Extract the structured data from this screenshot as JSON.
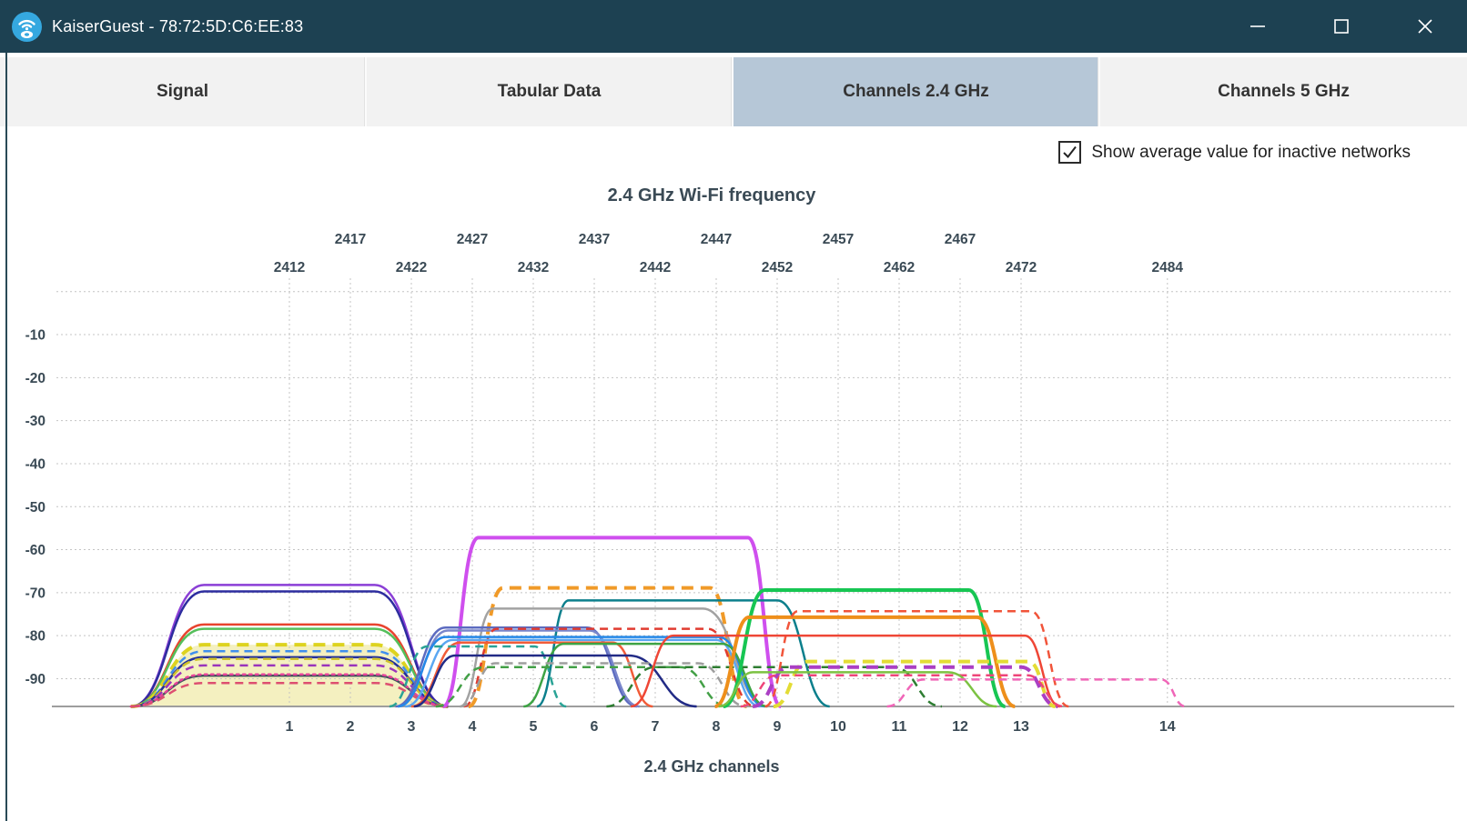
{
  "window": {
    "title": "KaiserGuest - 78:72:5D:C6:EE:83"
  },
  "tabs": [
    {
      "label": "Signal",
      "active": false
    },
    {
      "label": "Tabular Data",
      "active": false
    },
    {
      "label": "Channels 2.4 GHz",
      "active": true
    },
    {
      "label": "Channels 5 GHz",
      "active": false
    }
  ],
  "options": {
    "show_average_label": "Show average value for inactive networks",
    "checked": true
  },
  "chart_data": {
    "type": "area",
    "title": "2.4 GHz Wi-Fi frequency",
    "xlabel": "2.4 GHz channels",
    "x_unit": "MHz",
    "y_unit": "dBm",
    "ylim": [
      0,
      -96
    ],
    "grid": true,
    "freq_labels_upper_row": [
      2417,
      2427,
      2437,
      2447,
      2457,
      2467
    ],
    "freq_labels_lower_row": [
      2412,
      2422,
      2432,
      2442,
      2452,
      2462,
      2472,
      2484
    ],
    "y_ticks": [
      -10,
      -20,
      -30,
      -40,
      -50,
      -60,
      -70,
      -80,
      -90
    ],
    "y_gridlines": [
      0,
      -10,
      -20,
      -30,
      -40,
      -50,
      -60,
      -70,
      -80,
      -90
    ],
    "channels": [
      {
        "num": 1,
        "mhz": 2412
      },
      {
        "num": 2,
        "mhz": 2417
      },
      {
        "num": 3,
        "mhz": 2422
      },
      {
        "num": 4,
        "mhz": 2427
      },
      {
        "num": 5,
        "mhz": 2432
      },
      {
        "num": 6,
        "mhz": 2437
      },
      {
        "num": 7,
        "mhz": 2442
      },
      {
        "num": 8,
        "mhz": 2447
      },
      {
        "num": 9,
        "mhz": 2452
      },
      {
        "num": 10,
        "mhz": 2457
      },
      {
        "num": 11,
        "mhz": 2462
      },
      {
        "num": 12,
        "mhz": 2467
      },
      {
        "num": 13,
        "mhz": 2472
      },
      {
        "num": 14,
        "mhz": 2484
      }
    ],
    "networks": [
      {
        "color": "#8b3fd6",
        "style": "solid",
        "peak_dbm": -68.2,
        "f_base_left": 2399,
        "f_top_left": 2405,
        "f_top_right": 2419,
        "f_base_right": 2425
      },
      {
        "color": "#2d2d9f",
        "style": "solid",
        "peak_dbm": -69.7,
        "f_base_left": 2399,
        "f_top_left": 2405,
        "f_top_right": 2419,
        "f_base_right": 2425
      },
      {
        "color": "#e8432e",
        "style": "solid",
        "peak_dbm": -77.4,
        "f_base_left": 2399,
        "f_top_left": 2405,
        "f_top_right": 2419,
        "f_base_right": 2425
      },
      {
        "color": "#55bf5b",
        "style": "solid",
        "peak_dbm": -78.4,
        "f_base_left": 2399,
        "f_top_left": 2405,
        "f_top_right": 2419,
        "f_base_right": 2425
      },
      {
        "color": "#ddd31f",
        "style": "dashed",
        "peak_dbm": -82.1,
        "f_base_left": 2399,
        "f_top_left": 2405,
        "f_top_right": 2419,
        "f_base_right": 2425,
        "selected": true,
        "thick": true,
        "fill_color": "#f4f0c0"
      },
      {
        "color": "#3f8fee",
        "style": "dashed",
        "peak_dbm": -83.6,
        "f_base_left": 2399,
        "f_top_left": 2405,
        "f_top_right": 2419,
        "f_base_right": 2425
      },
      {
        "color": "#24309c",
        "style": "solid",
        "peak_dbm": -85.0,
        "f_base_left": 2399,
        "f_top_left": 2405,
        "f_top_right": 2419,
        "f_base_right": 2425
      },
      {
        "color": "#cfc22c",
        "style": "dashed",
        "peak_dbm": -85.4,
        "f_base_left": 2399,
        "f_top_left": 2405,
        "f_top_right": 2419,
        "f_base_right": 2425
      },
      {
        "color": "#9a35bb",
        "style": "dashed",
        "peak_dbm": -86.9,
        "f_base_left": 2399,
        "f_top_left": 2405,
        "f_top_right": 2419,
        "f_base_right": 2425
      },
      {
        "color": "#44525e",
        "style": "solid",
        "peak_dbm": -89.3,
        "f_base_left": 2399,
        "f_top_left": 2405,
        "f_top_right": 2419,
        "f_base_right": 2425
      },
      {
        "color": "#e8439a",
        "style": "dotted",
        "peak_dbm": -89.0,
        "f_base_left": 2399,
        "f_top_left": 2405,
        "f_top_right": 2419,
        "f_base_right": 2425
      },
      {
        "color": "#dd4f70",
        "style": "dashed",
        "peak_dbm": -91.0,
        "f_base_left": 2399,
        "f_top_left": 2405,
        "f_top_right": 2419,
        "f_base_right": 2425
      },
      {
        "color": "#cf4fee",
        "style": "solid",
        "peak_dbm": -57.2,
        "f_base_left": 2424.6,
        "f_top_left": 2427.5,
        "f_top_right": 2449.6,
        "f_base_right": 2452.3,
        "thick": true
      },
      {
        "color": "#f09a28",
        "style": "dashed",
        "peak_dbm": -68.9,
        "f_base_left": 2426.7,
        "f_top_left": 2429.5,
        "f_top_right": 2446.5,
        "f_base_right": 2449.5,
        "thick": true
      },
      {
        "color": "#0b7f8c",
        "style": "solid",
        "peak_dbm": -71.8,
        "f_base_left": 2432.3,
        "f_top_left": 2434.9,
        "f_top_right": 2452.0,
        "f_base_right": 2456.3
      },
      {
        "color": "#a2a2a2",
        "style": "solid",
        "peak_dbm": -73.7,
        "f_base_left": 2426.0,
        "f_top_left": 2428.7,
        "f_top_right": 2445.9,
        "f_base_right": 2451.2
      },
      {
        "color": "#5c6bc0",
        "style": "solid",
        "peak_dbm": -78.1,
        "f_base_left": 2420.7,
        "f_top_left": 2424.8,
        "f_top_right": 2436.4,
        "f_base_right": 2440.5
      },
      {
        "color": "#7986cb",
        "style": "solid",
        "peak_dbm": -78.8,
        "f_base_left": 2420.9,
        "f_top_left": 2425.0,
        "f_top_right": 2436.6,
        "f_base_right": 2440.7
      },
      {
        "color": "#e03b30",
        "style": "dashed",
        "peak_dbm": -78.4,
        "f_base_left": 2426.3,
        "f_top_left": 2429.0,
        "f_top_right": 2446.3,
        "f_base_right": 2450.2
      },
      {
        "color": "#2488e8",
        "style": "solid",
        "peak_dbm": -80.3,
        "f_base_left": 2420.9,
        "f_top_left": 2424.8,
        "f_top_right": 2447.2,
        "f_base_right": 2451.0
      },
      {
        "color": "#5aa7f2",
        "style": "solid",
        "peak_dbm": -81.0,
        "f_base_left": 2421.5,
        "f_top_left": 2425.4,
        "f_top_right": 2447.0,
        "f_base_right": 2450.6
      },
      {
        "color": "#f25c38",
        "style": "solid",
        "peak_dbm": -81.6,
        "f_base_left": 2422.0,
        "f_top_left": 2426.0,
        "f_top_right": 2438.5,
        "f_base_right": 2441.8
      },
      {
        "color": "#2aa396",
        "style": "dashed",
        "peak_dbm": -82.5,
        "f_base_left": 2420.2,
        "f_top_left": 2423.3,
        "f_top_right": 2432.1,
        "f_base_right": 2434.7
      },
      {
        "color": "#3da344",
        "style": "solid",
        "peak_dbm": -81.9,
        "f_base_left": 2431.2,
        "f_top_left": 2434.5,
        "f_top_right": 2447.5,
        "f_base_right": 2451.2
      },
      {
        "color": "#222b86",
        "style": "solid",
        "peak_dbm": -84.6,
        "f_base_left": 2422.2,
        "f_top_left": 2425.6,
        "f_top_right": 2439.8,
        "f_base_right": 2445.4
      },
      {
        "color": "#9e9e9e",
        "style": "dashed",
        "peak_dbm": -86.4,
        "f_base_left": 2426.0,
        "f_top_left": 2428.9,
        "f_top_right": 2445.5,
        "f_base_right": 2449.5
      },
      {
        "color": "#43a047",
        "style": "dashed",
        "peak_dbm": -87.3,
        "f_base_left": 2424.0,
        "f_top_left": 2428.0,
        "f_top_right": 2444.0,
        "f_base_right": 2448.0
      },
      {
        "color": "#2e7d32",
        "style": "dashed",
        "peak_dbm": -87.3,
        "f_base_left": 2438.0,
        "f_top_left": 2442.0,
        "f_top_right": 2461.5,
        "f_base_right": 2465.5
      },
      {
        "color": "#17c653",
        "style": "solid",
        "peak_dbm": -69.4,
        "f_base_left": 2447.6,
        "f_top_left": 2451.0,
        "f_top_right": 2467.7,
        "f_base_right": 2470.7,
        "thick": true
      },
      {
        "color": "#ee8f1b",
        "style": "solid",
        "peak_dbm": -75.7,
        "f_base_left": 2446.9,
        "f_top_left": 2449.7,
        "f_top_right": 2468.4,
        "f_base_right": 2471.5,
        "thick": true
      },
      {
        "color": "#f1543a",
        "style": "dashed",
        "peak_dbm": -74.3,
        "f_base_left": 2451.0,
        "f_top_left": 2453.7,
        "f_top_right": 2472.8,
        "f_base_right": 2475.9
      },
      {
        "color": "#ef4636",
        "style": "solid",
        "peak_dbm": -80.0,
        "f_base_left": 2440.0,
        "f_top_left": 2443.5,
        "f_top_right": 2472.3,
        "f_base_right": 2475.2
      },
      {
        "color": "#e3dc35",
        "style": "dashed",
        "peak_dbm": -86.0,
        "f_base_left": 2451.7,
        "f_top_left": 2454.5,
        "f_top_right": 2472.6,
        "f_base_right": 2474.8,
        "thick": true
      },
      {
        "color": "#aa3fc4",
        "style": "dashed",
        "peak_dbm": -87.3,
        "f_base_left": 2450.0,
        "f_top_left": 2453.0,
        "f_top_right": 2472.0,
        "f_base_right": 2475.0,
        "thick": true
      },
      {
        "color": "#ee4579",
        "style": "dashed",
        "peak_dbm": -89.2,
        "f_base_left": 2449.0,
        "f_top_left": 2452.0,
        "f_top_right": 2472.5,
        "f_base_right": 2475.5
      },
      {
        "color": "#7cc242",
        "style": "solid",
        "peak_dbm": -88.5,
        "f_base_left": 2447.2,
        "f_top_left": 2450.0,
        "f_top_right": 2466.0,
        "f_base_right": 2470.0
      },
      {
        "color": "#f066b8",
        "style": "dashed",
        "peak_dbm": -90.2,
        "f_base_left": 2461.0,
        "f_top_left": 2464.0,
        "f_top_right": 2483.5,
        "f_base_right": 2485.5
      }
    ]
  }
}
